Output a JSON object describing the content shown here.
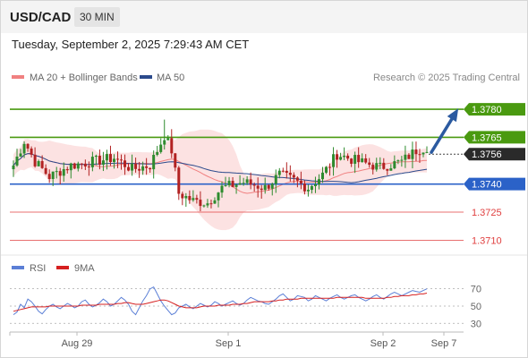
{
  "header": {
    "symbol": "USD/CAD",
    "timeframe": "30 MIN"
  },
  "datetime": "Tuesday, September 2, 2025 7:29:43 AM CET",
  "legend": {
    "ma20": {
      "label": "MA 20 + Bollinger Bands",
      "color": "#f08080"
    },
    "ma50": {
      "label": "MA 50",
      "color": "#2b4a8c"
    },
    "credit": "Research © 2025 Trading Central"
  },
  "rsi_legend": {
    "rsi": {
      "label": "RSI",
      "color": "#5b7fd6"
    },
    "ma9": {
      "label": "9MA",
      "color": "#d62020"
    }
  },
  "colors": {
    "up": "#2e8b2e",
    "down": "#b22222",
    "green_level": "#4a9a10",
    "blue_level": "#2b62c8",
    "red_level": "#e04040",
    "arrow": "#2b5aa0",
    "band_fill": "#fbd5d5"
  },
  "chart_data": {
    "type": "candlestick",
    "price_range": [
      1.3703,
      1.3792
    ],
    "levels": [
      {
        "price": 1.378,
        "label": "1.3780",
        "kind": "resistance"
      },
      {
        "price": 1.3765,
        "label": "1.3765",
        "kind": "resistance"
      },
      {
        "price": 1.374,
        "label": "1.3740",
        "kind": "pivot"
      },
      {
        "price": 1.3725,
        "label": "1.3725",
        "kind": "support"
      },
      {
        "price": 1.371,
        "label": "1.3710",
        "kind": "support"
      }
    ],
    "last_price": {
      "price": 1.3756,
      "label": "1.3756"
    },
    "x_labels": [
      "Aug 29",
      "Sep 1",
      "Sep 2",
      "Sep 7"
    ],
    "anchors": [
      [
        0,
        1.375
      ],
      [
        3,
        1.3763
      ],
      [
        6,
        1.3752
      ],
      [
        10,
        1.3744
      ],
      [
        16,
        1.375
      ],
      [
        22,
        1.3752
      ],
      [
        28,
        1.3754
      ],
      [
        33,
        1.3748
      ],
      [
        38,
        1.375
      ],
      [
        42,
        1.3766
      ],
      [
        44,
        1.3758
      ],
      [
        46,
        1.3735
      ],
      [
        50,
        1.3731
      ],
      [
        54,
        1.373
      ],
      [
        58,
        1.3738
      ],
      [
        64,
        1.3741
      ],
      [
        70,
        1.3738
      ],
      [
        74,
        1.3745
      ],
      [
        78,
        1.3742
      ],
      [
        82,
        1.3738
      ],
      [
        86,
        1.3745
      ],
      [
        90,
        1.3756
      ],
      [
        96,
        1.3752
      ],
      [
        102,
        1.3749
      ],
      [
        108,
        1.3752
      ],
      [
        112,
        1.3758
      ],
      [
        115,
        1.376
      ]
    ],
    "rsi": {
      "levels": [
        70,
        50,
        30
      ],
      "range": [
        22,
        80
      ],
      "values": [
        40,
        43,
        52,
        48,
        58,
        55,
        50,
        44,
        41,
        46,
        50,
        52,
        49,
        47,
        50,
        53,
        51,
        48,
        50,
        55,
        57,
        52,
        49,
        51,
        54,
        58,
        55,
        50,
        52,
        56,
        60,
        57,
        52,
        44,
        40,
        48,
        56,
        62,
        70,
        72,
        64,
        56,
        50,
        45,
        40,
        42,
        48,
        50,
        52,
        49,
        47,
        50,
        53,
        51,
        49,
        51,
        55,
        53,
        50,
        52,
        54,
        56,
        53,
        51,
        53,
        57,
        60,
        58,
        56,
        55,
        53,
        52,
        55,
        58,
        62,
        64,
        60,
        56,
        58,
        62,
        61,
        60,
        56,
        58,
        62,
        60,
        58,
        56,
        59,
        61,
        63,
        60,
        58,
        60,
        62,
        63,
        60,
        58,
        56,
        58,
        61,
        63,
        60,
        58,
        61,
        64,
        66,
        64,
        62,
        64,
        66,
        68,
        67,
        66,
        68,
        70
      ],
      "ma9": [
        44,
        45,
        46,
        47,
        48,
        49,
        49,
        49,
        49,
        49,
        50,
        50,
        50,
        50,
        50,
        50,
        50,
        50,
        50,
        51,
        51,
        51,
        51,
        51,
        52,
        52,
        52,
        52,
        52,
        53,
        53,
        54,
        54,
        53,
        52,
        52,
        52,
        53,
        54,
        55,
        56,
        57,
        57,
        56,
        54,
        52,
        50,
        49,
        48,
        48,
        48,
        48,
        49,
        50,
        50,
        50,
        50,
        51,
        51,
        51,
        51,
        52,
        52,
        52,
        53,
        53,
        54,
        55,
        55,
        55,
        55,
        55,
        56,
        56,
        57,
        57,
        58,
        58,
        58,
        58,
        59,
        59,
        59,
        59,
        59,
        59,
        59,
        59,
        59,
        59,
        60,
        60,
        60,
        60,
        60,
        60,
        60,
        60,
        59,
        59,
        59,
        59,
        59,
        59,
        60,
        60,
        61,
        61,
        62,
        62,
        62,
        63,
        63,
        64,
        64,
        65
      ]
    }
  }
}
